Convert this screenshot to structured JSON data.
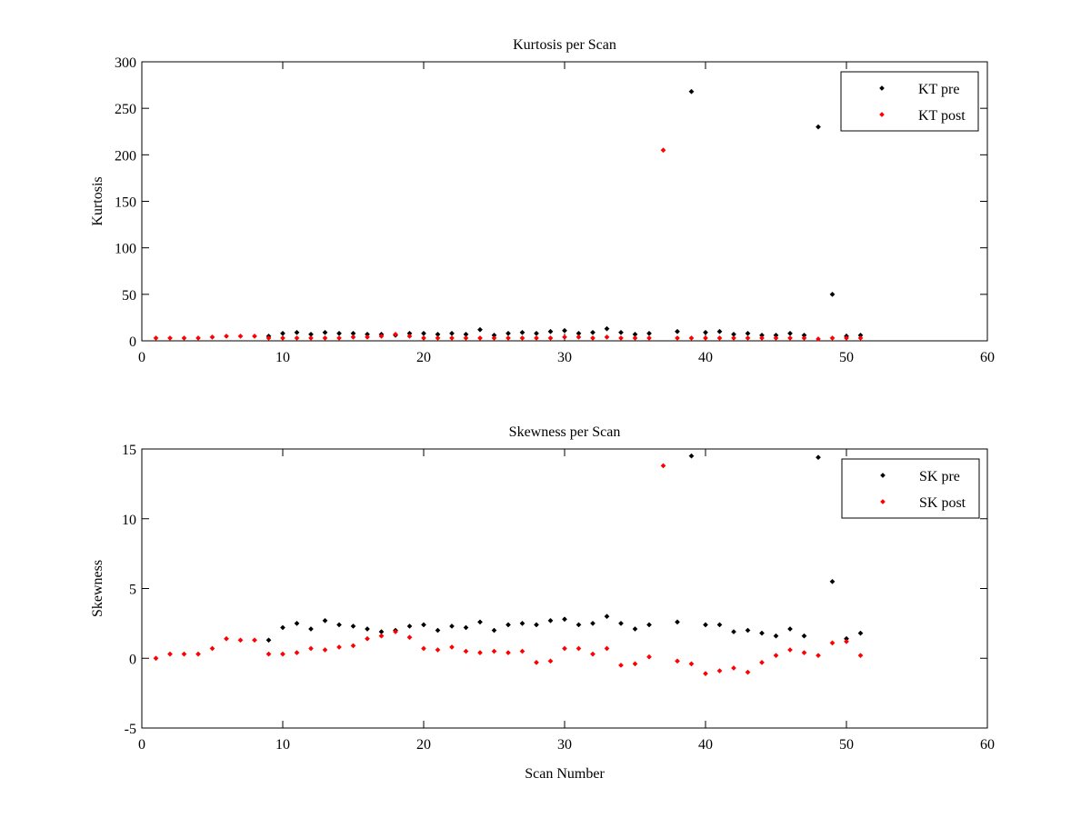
{
  "chart_data": [
    {
      "type": "scatter",
      "title": "Kurtosis per Scan",
      "xlabel": "",
      "ylabel": "Kurtosis",
      "xlim": [
        0,
        60
      ],
      "ylim": [
        0,
        300
      ],
      "xticks": [
        0,
        10,
        20,
        30,
        40,
        50,
        60
      ],
      "yticks": [
        0,
        50,
        100,
        150,
        200,
        250,
        300
      ],
      "legend_position": "top-right",
      "series": [
        {
          "name": "KT pre",
          "color": "#000000",
          "x": [
            9,
            10,
            11,
            12,
            13,
            14,
            15,
            16,
            17,
            18,
            19,
            20,
            21,
            22,
            23,
            24,
            25,
            26,
            27,
            28,
            29,
            30,
            31,
            32,
            33,
            34,
            35,
            36,
            38,
            39,
            40,
            41,
            42,
            43,
            44,
            45,
            46,
            47,
            48,
            49,
            50,
            51
          ],
          "y": [
            5,
            8,
            9,
            7,
            9,
            8,
            8,
            7,
            7,
            6,
            8,
            8,
            7,
            8,
            7,
            12,
            6,
            8,
            9,
            8,
            10,
            11,
            8,
            9,
            13,
            9,
            7,
            8,
            10,
            268,
            9,
            10,
            7,
            8,
            6,
            6,
            8,
            6,
            230,
            50,
            5,
            6
          ]
        },
        {
          "name": "KT post",
          "color": "#ff0000",
          "x": [
            1,
            2,
            3,
            4,
            5,
            6,
            7,
            8,
            9,
            10,
            11,
            12,
            13,
            14,
            15,
            16,
            17,
            18,
            19,
            20,
            21,
            22,
            23,
            24,
            25,
            26,
            27,
            28,
            29,
            30,
            31,
            32,
            33,
            34,
            35,
            36,
            37,
            38,
            39,
            40,
            41,
            42,
            43,
            44,
            45,
            46,
            47,
            48,
            49,
            50,
            51
          ],
          "y": [
            3,
            3,
            3,
            3,
            4,
            5,
            5,
            5,
            3,
            3,
            3,
            3,
            3,
            3,
            4,
            4,
            5,
            7,
            5,
            3,
            3,
            3,
            3,
            3,
            3,
            3,
            3,
            3,
            3,
            4,
            4,
            3,
            4,
            3,
            3,
            3,
            205,
            3,
            3,
            3,
            3,
            3,
            3,
            3,
            3,
            3,
            3,
            2,
            3,
            3,
            3
          ]
        }
      ]
    },
    {
      "type": "scatter",
      "title": "Skewness per Scan",
      "xlabel": "Scan Number",
      "ylabel": "Skewness",
      "xlim": [
        0,
        60
      ],
      "ylim": [
        -5,
        15
      ],
      "xticks": [
        0,
        10,
        20,
        30,
        40,
        50,
        60
      ],
      "yticks": [
        -5,
        0,
        5,
        10,
        15
      ],
      "legend_position": "top-right",
      "series": [
        {
          "name": "SK pre",
          "color": "#000000",
          "x": [
            9,
            10,
            11,
            12,
            13,
            14,
            15,
            16,
            17,
            18,
            19,
            20,
            21,
            22,
            23,
            24,
            25,
            26,
            27,
            28,
            29,
            30,
            31,
            32,
            33,
            34,
            35,
            36,
            38,
            39,
            40,
            41,
            42,
            43,
            44,
            45,
            46,
            47,
            48,
            49,
            50,
            51
          ],
          "y": [
            1.3,
            2.2,
            2.5,
            2.1,
            2.7,
            2.4,
            2.3,
            2.1,
            1.9,
            2.0,
            2.3,
            2.4,
            2.0,
            2.3,
            2.2,
            2.6,
            2.0,
            2.4,
            2.5,
            2.4,
            2.7,
            2.8,
            2.4,
            2.5,
            3.0,
            2.5,
            2.1,
            2.4,
            2.6,
            14.5,
            2.4,
            2.4,
            1.9,
            2.0,
            1.8,
            1.6,
            2.1,
            1.6,
            14.4,
            5.5,
            1.4,
            1.8
          ]
        },
        {
          "name": "SK post",
          "color": "#ff0000",
          "x": [
            1,
            2,
            3,
            4,
            5,
            6,
            7,
            8,
            9,
            10,
            11,
            12,
            13,
            14,
            15,
            16,
            17,
            18,
            19,
            20,
            21,
            22,
            23,
            24,
            25,
            26,
            27,
            28,
            29,
            30,
            31,
            32,
            33,
            34,
            35,
            36,
            37,
            38,
            39,
            40,
            41,
            42,
            43,
            44,
            45,
            46,
            47,
            48,
            49,
            50,
            51
          ],
          "y": [
            0.0,
            0.3,
            0.3,
            0.3,
            0.7,
            1.4,
            1.3,
            1.3,
            0.3,
            0.3,
            0.4,
            0.7,
            0.6,
            0.8,
            0.9,
            1.4,
            1.6,
            1.9,
            1.5,
            0.7,
            0.6,
            0.8,
            0.5,
            0.4,
            0.5,
            0.4,
            0.5,
            -0.3,
            -0.2,
            0.7,
            0.7,
            0.3,
            0.7,
            -0.5,
            -0.4,
            0.1,
            13.8,
            -0.2,
            -0.4,
            -1.1,
            -0.9,
            -0.7,
            -1.0,
            -0.3,
            0.2,
            0.6,
            0.4,
            0.2,
            1.1,
            1.2,
            0.2
          ]
        }
      ]
    }
  ]
}
